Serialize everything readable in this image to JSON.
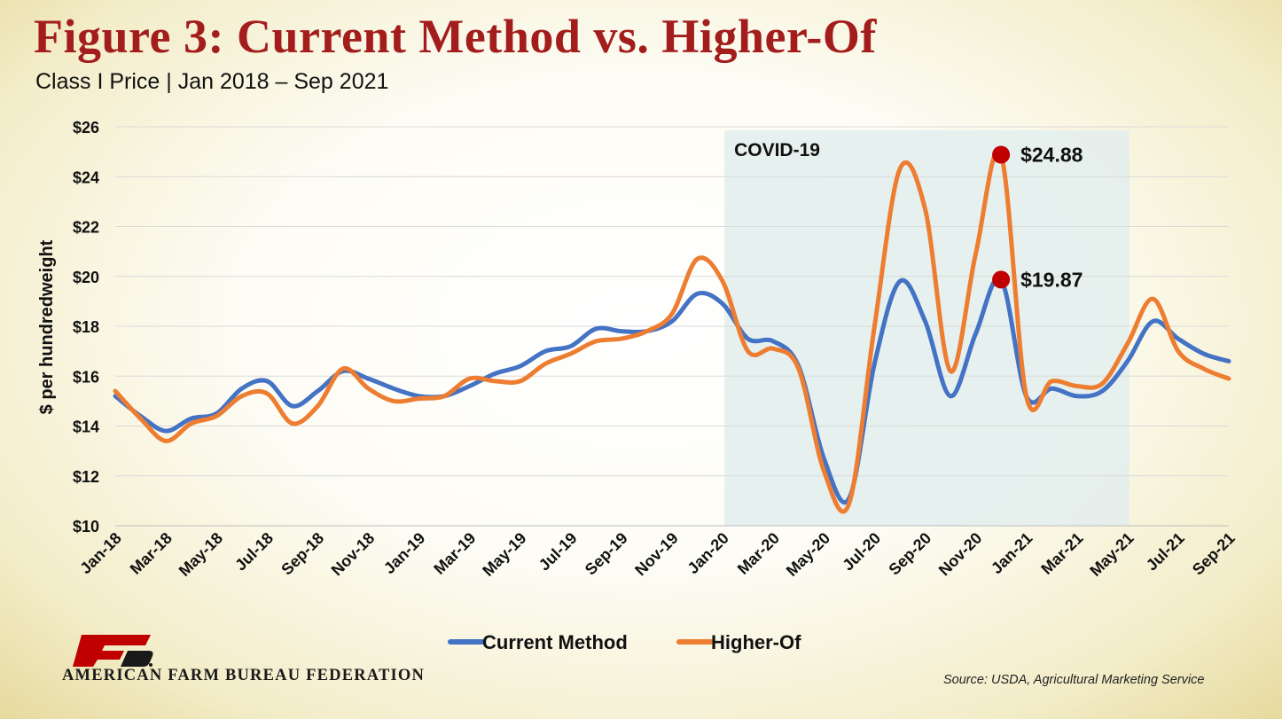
{
  "chart_data": {
    "type": "line",
    "title": "Figure 3: Current Method vs. Higher-Of",
    "subtitle": "Class I Price | Jan 2018 – Sep 2021",
    "ylabel": "$ per hundredweight",
    "xlabel": "",
    "ylim": [
      10,
      26
    ],
    "y_ticks": [
      10,
      12,
      14,
      16,
      18,
      20,
      22,
      24,
      26
    ],
    "y_tick_labels": [
      "$10",
      "$12",
      "$14",
      "$16",
      "$18",
      "$20",
      "$22",
      "$24",
      "$26"
    ],
    "categories": [
      "Jan-18",
      "Feb-18",
      "Mar-18",
      "Apr-18",
      "May-18",
      "Jun-18",
      "Jul-18",
      "Aug-18",
      "Sep-18",
      "Oct-18",
      "Nov-18",
      "Dec-18",
      "Jan-19",
      "Feb-19",
      "Mar-19",
      "Apr-19",
      "May-19",
      "Jun-19",
      "Jul-19",
      "Aug-19",
      "Sep-19",
      "Oct-19",
      "Nov-19",
      "Dec-19",
      "Jan-20",
      "Feb-20",
      "Mar-20",
      "Apr-20",
      "May-20",
      "Jun-20",
      "Jul-20",
      "Aug-20",
      "Sep-20",
      "Oct-20",
      "Nov-20",
      "Dec-20",
      "Jan-21",
      "Feb-21",
      "Mar-21",
      "Apr-21",
      "May-21",
      "Jun-21",
      "Jul-21",
      "Aug-21",
      "Sep-21"
    ],
    "x_tick_labels": [
      "Jan-18",
      "Mar-18",
      "May-18",
      "Jul-18",
      "Sep-18",
      "Nov-18",
      "Jan-19",
      "Mar-19",
      "May-19",
      "Jul-19",
      "Sep-19",
      "Nov-19",
      "Jan-20",
      "Mar-20",
      "May-20",
      "Jul-20",
      "Sep-20",
      "Nov-20",
      "Jan-21",
      "Mar-21",
      "May-21",
      "Jul-21",
      "Sep-21"
    ],
    "series": [
      {
        "name": "Current Method",
        "color": "#4472c4",
        "values": [
          15.2,
          14.4,
          13.8,
          14.3,
          14.5,
          15.5,
          15.8,
          14.8,
          15.4,
          16.2,
          15.9,
          15.5,
          15.2,
          15.2,
          15.6,
          16.1,
          16.4,
          17.0,
          17.2,
          17.9,
          17.8,
          17.8,
          18.2,
          19.3,
          18.9,
          17.5,
          17.4,
          16.4,
          12.7,
          11.1,
          16.5,
          19.8,
          18.2,
          15.2,
          17.7,
          19.87,
          15.2,
          15.5,
          15.2,
          15.4,
          16.6,
          18.2,
          17.5,
          16.9,
          16.6
        ]
      },
      {
        "name": "Higher-Of",
        "color": "#ed7d31",
        "values": [
          15.4,
          14.3,
          13.4,
          14.1,
          14.4,
          15.2,
          15.3,
          14.1,
          14.8,
          16.3,
          15.5,
          15.0,
          15.1,
          15.2,
          15.9,
          15.8,
          15.8,
          16.5,
          16.9,
          17.4,
          17.5,
          17.8,
          18.5,
          20.7,
          19.8,
          17.0,
          17.1,
          16.3,
          12.2,
          10.9,
          18.0,
          24.3,
          22.7,
          16.2,
          20.9,
          24.88,
          15.2,
          15.8,
          15.6,
          15.7,
          17.3,
          19.1,
          17.0,
          16.3,
          15.9
        ]
      }
    ],
    "shaded_region": {
      "label": "COVID-19",
      "from": "Jan-20",
      "to": "May-21"
    },
    "annotations": [
      {
        "category": "Dec-20",
        "value": 24.88,
        "label": "$24.88",
        "color": "#c00000"
      },
      {
        "category": "Dec-20",
        "value": 19.87,
        "label": "$19.87",
        "color": "#c00000"
      }
    ],
    "legend": "bottom",
    "grid": "horizontal"
  },
  "footer": {
    "organization": "AMERICAN FARM BUREAU FEDERATION",
    "source": "Source: USDA, Agricultural Marketing Service"
  },
  "logo": {
    "icon": "fb-logo-icon",
    "color": "#c00000"
  }
}
